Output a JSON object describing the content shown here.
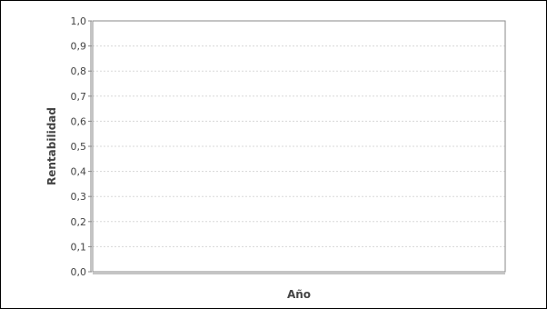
{
  "chart_data": {
    "type": "line",
    "title": "",
    "xlabel": "Año",
    "ylabel": "Rentabilidad",
    "ylim": [
      0,
      1.0
    ],
    "y_ticks": [
      "0,0",
      "0,1",
      "0,2",
      "0,3",
      "0,4",
      "0,5",
      "0,6",
      "0,7",
      "0,8",
      "0,9",
      "1,0"
    ],
    "categories": [],
    "series": [],
    "grid": true,
    "legend": "none",
    "colors": {
      "plot_border": "#8a8a8a",
      "gridline": "#d8d8d8",
      "axis_line": "#8a8a8a",
      "text": "#444444"
    }
  }
}
